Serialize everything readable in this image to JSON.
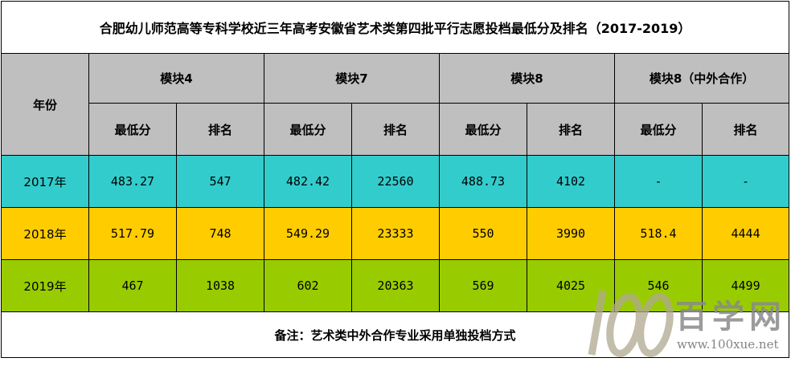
{
  "title": "合肥幼儿师范高等专科学校近三年高考安徽省艺术类第四批平行志愿投档最低分及排名（2017-2019）",
  "header": {
    "year_label": "年份",
    "modules": [
      "模块4",
      "模块7",
      "模块8",
      "模块8（中外合作）"
    ],
    "sub_min": "最低分",
    "sub_rank": "排名"
  },
  "rows": [
    {
      "year": "2017年",
      "cells": [
        "483.27",
        "547",
        "482.42",
        "22560",
        "488.73",
        "4102",
        "-",
        "-"
      ]
    },
    {
      "year": "2018年",
      "cells": [
        "517.79",
        "748",
        "549.29",
        "23333",
        "550",
        "3990",
        "518.4",
        "4444"
      ]
    },
    {
      "year": "2019年",
      "cells": [
        "467",
        "1038",
        "602",
        "20363",
        "569",
        "4025",
        "546",
        "4499"
      ]
    }
  ],
  "note": "备注：艺术类中外合作专业采用单独投档方式",
  "watermark": {
    "brand": "百学网",
    "url": "www.100xue.net",
    "logo": "100"
  },
  "colors": {
    "header": "#bfbfbf",
    "row_2017": "#33cccc",
    "row_2018": "#ffcc00",
    "row_2019": "#99cc00"
  }
}
